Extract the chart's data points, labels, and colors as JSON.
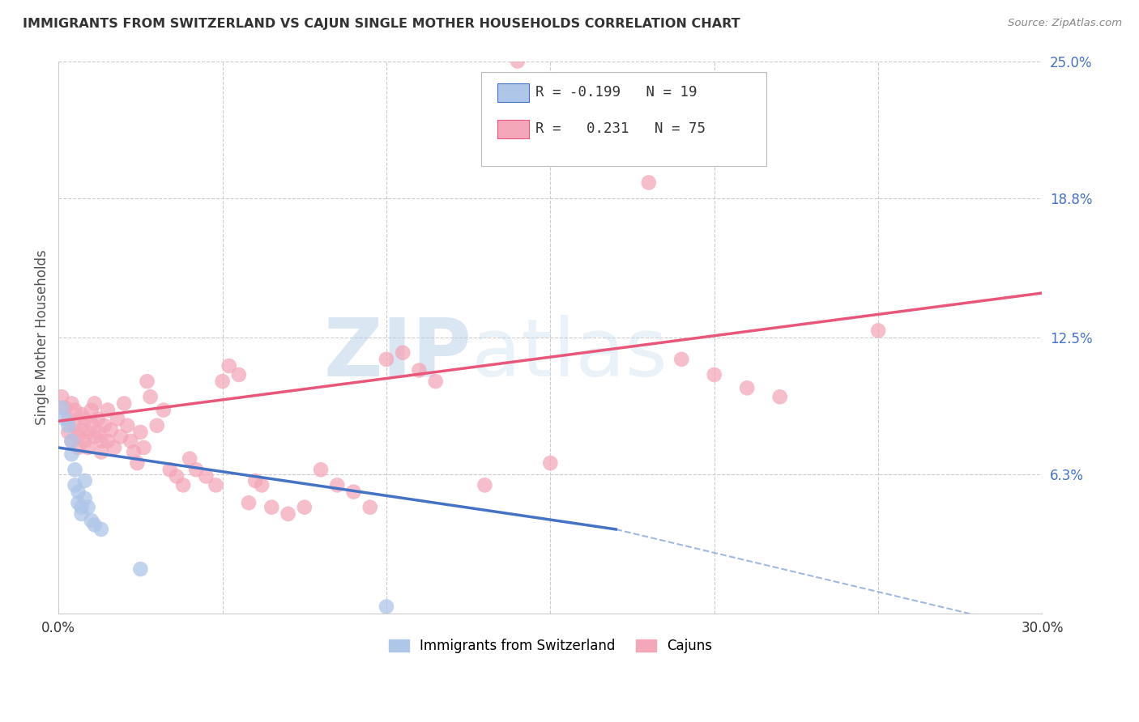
{
  "title": "IMMIGRANTS FROM SWITZERLAND VS CAJUN SINGLE MOTHER HOUSEHOLDS CORRELATION CHART",
  "source": "Source: ZipAtlas.com",
  "ylabel": "Single Mother Households",
  "xlim": [
    0.0,
    0.3
  ],
  "ylim": [
    0.0,
    0.25
  ],
  "xtick_positions": [
    0.0,
    0.05,
    0.1,
    0.15,
    0.2,
    0.25,
    0.3
  ],
  "xticklabels": [
    "0.0%",
    "",
    "",
    "",
    "",
    "",
    "30.0%"
  ],
  "ytick_values_right": [
    0.25,
    0.188,
    0.125,
    0.063
  ],
  "ytick_labels_right": [
    "25.0%",
    "18.8%",
    "12.5%",
    "6.3%"
  ],
  "blue_color": "#aec6e8",
  "pink_color": "#f4a7b9",
  "blue_line_color": "#4472c4",
  "pink_line_color": "#e8567a",
  "blue_scatter": [
    [
      0.001,
      0.093
    ],
    [
      0.002,
      0.088
    ],
    [
      0.003,
      0.085
    ],
    [
      0.004,
      0.078
    ],
    [
      0.004,
      0.072
    ],
    [
      0.005,
      0.065
    ],
    [
      0.005,
      0.058
    ],
    [
      0.006,
      0.055
    ],
    [
      0.006,
      0.05
    ],
    [
      0.007,
      0.048
    ],
    [
      0.007,
      0.045
    ],
    [
      0.008,
      0.06
    ],
    [
      0.008,
      0.052
    ],
    [
      0.009,
      0.048
    ],
    [
      0.01,
      0.042
    ],
    [
      0.011,
      0.04
    ],
    [
      0.013,
      0.038
    ],
    [
      0.025,
      0.02
    ],
    [
      0.1,
      0.003
    ]
  ],
  "pink_scatter": [
    [
      0.001,
      0.098
    ],
    [
      0.002,
      0.093
    ],
    [
      0.003,
      0.088
    ],
    [
      0.003,
      0.082
    ],
    [
      0.004,
      0.095
    ],
    [
      0.004,
      0.078
    ],
    [
      0.005,
      0.092
    ],
    [
      0.005,
      0.085
    ],
    [
      0.006,
      0.08
    ],
    [
      0.006,
      0.075
    ],
    [
      0.007,
      0.09
    ],
    [
      0.007,
      0.083
    ],
    [
      0.008,
      0.088
    ],
    [
      0.008,
      0.078
    ],
    [
      0.009,
      0.082
    ],
    [
      0.009,
      0.075
    ],
    [
      0.01,
      0.092
    ],
    [
      0.01,
      0.086
    ],
    [
      0.011,
      0.095
    ],
    [
      0.011,
      0.08
    ],
    [
      0.012,
      0.088
    ],
    [
      0.012,
      0.082
    ],
    [
      0.013,
      0.078
    ],
    [
      0.013,
      0.073
    ],
    [
      0.014,
      0.085
    ],
    [
      0.015,
      0.092
    ],
    [
      0.015,
      0.078
    ],
    [
      0.016,
      0.083
    ],
    [
      0.017,
      0.075
    ],
    [
      0.018,
      0.088
    ],
    [
      0.019,
      0.08
    ],
    [
      0.02,
      0.095
    ],
    [
      0.021,
      0.085
    ],
    [
      0.022,
      0.078
    ],
    [
      0.023,
      0.073
    ],
    [
      0.024,
      0.068
    ],
    [
      0.025,
      0.082
    ],
    [
      0.026,
      0.075
    ],
    [
      0.027,
      0.105
    ],
    [
      0.028,
      0.098
    ],
    [
      0.03,
      0.085
    ],
    [
      0.032,
      0.092
    ],
    [
      0.034,
      0.065
    ],
    [
      0.036,
      0.062
    ],
    [
      0.038,
      0.058
    ],
    [
      0.04,
      0.07
    ],
    [
      0.042,
      0.065
    ],
    [
      0.045,
      0.062
    ],
    [
      0.048,
      0.058
    ],
    [
      0.05,
      0.105
    ],
    [
      0.052,
      0.112
    ],
    [
      0.055,
      0.108
    ],
    [
      0.058,
      0.05
    ],
    [
      0.06,
      0.06
    ],
    [
      0.062,
      0.058
    ],
    [
      0.065,
      0.048
    ],
    [
      0.07,
      0.045
    ],
    [
      0.075,
      0.048
    ],
    [
      0.08,
      0.065
    ],
    [
      0.085,
      0.058
    ],
    [
      0.09,
      0.055
    ],
    [
      0.095,
      0.048
    ],
    [
      0.1,
      0.115
    ],
    [
      0.105,
      0.118
    ],
    [
      0.11,
      0.11
    ],
    [
      0.115,
      0.105
    ],
    [
      0.17,
      0.22
    ],
    [
      0.18,
      0.195
    ],
    [
      0.19,
      0.115
    ],
    [
      0.2,
      0.108
    ],
    [
      0.21,
      0.102
    ],
    [
      0.22,
      0.098
    ],
    [
      0.25,
      0.128
    ],
    [
      0.13,
      0.058
    ],
    [
      0.14,
      0.25
    ],
    [
      0.15,
      0.068
    ]
  ],
  "watermark_zip": "ZIP",
  "watermark_atlas": "atlas",
  "watermark_color": "#c8ddf0",
  "background_color": "#ffffff",
  "grid_color": "#cccccc"
}
